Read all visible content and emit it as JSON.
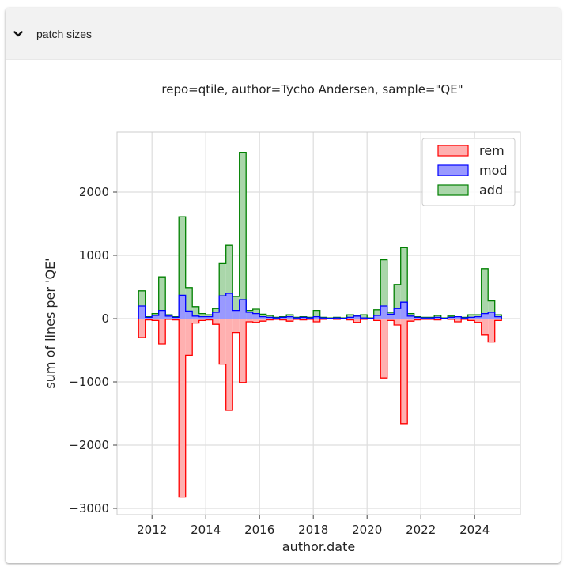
{
  "panel": {
    "title": "patch sizes",
    "toggle_icon": "chevron-down-icon"
  },
  "chart_data": {
    "type": "histogram-step",
    "title": "repo=qtile, author=Tycho Andersen, sample=\"QE\"",
    "xlabel": "author.date",
    "ylabel": "sum of lines per 'QE'",
    "ylim": [
      -3100,
      2950
    ],
    "xlim": [
      2010.7,
      2025.7
    ],
    "yticks": [
      -3000,
      -2000,
      -1000,
      0,
      1000,
      2000
    ],
    "ytick_labels": [
      "−3000",
      "−2000",
      "−1000",
      "0",
      "1000",
      "2000"
    ],
    "xticks": [
      2012,
      2014,
      2016,
      2018,
      2020,
      2022,
      2024
    ],
    "xtick_labels": [
      "2012",
      "2014",
      "2016",
      "2018",
      "2020",
      "2022",
      "2024"
    ],
    "grid": true,
    "legend_position": "top-right",
    "bin_width_years": 0.25,
    "x": [
      2011.5,
      2011.75,
      2012,
      2012.25,
      2012.5,
      2012.75,
      2013,
      2013.25,
      2013.5,
      2013.75,
      2014,
      2014.25,
      2014.5,
      2014.75,
      2015,
      2015.25,
      2015.5,
      2015.75,
      2016,
      2016.25,
      2016.5,
      2016.75,
      2017,
      2017.25,
      2017.5,
      2017.75,
      2018,
      2018.25,
      2018.5,
      2018.75,
      2019,
      2019.25,
      2019.5,
      2019.75,
      2020,
      2020.25,
      2020.5,
      2020.75,
      2021,
      2021.25,
      2021.5,
      2021.75,
      2022,
      2022.25,
      2022.5,
      2022.75,
      2023,
      2023.25,
      2023.5,
      2023.75,
      2024,
      2024.25,
      2024.5,
      2024.75
    ],
    "series": [
      {
        "name": "rem",
        "color": "#ff0000",
        "fill": "#ffb0b0",
        "values": [
          -300,
          -20,
          -30,
          -400,
          -10,
          -20,
          -2820,
          -580,
          -70,
          -30,
          -20,
          -90,
          -720,
          -1450,
          -220,
          -1010,
          -50,
          -60,
          -40,
          -20,
          -10,
          -20,
          -40,
          -10,
          -20,
          -10,
          -50,
          -10,
          -5,
          -10,
          -5,
          -20,
          -60,
          -10,
          -5,
          -30,
          -940,
          -30,
          -100,
          -1660,
          -40,
          -20,
          -10,
          -10,
          -20,
          -5,
          -10,
          -50,
          -10,
          -30,
          -60,
          -260,
          -370,
          -30
        ]
      },
      {
        "name": "mod",
        "color": "#0000ff",
        "fill": "#9999ff",
        "values": [
          200,
          20,
          50,
          130,
          40,
          20,
          370,
          120,
          40,
          30,
          30,
          100,
          360,
          400,
          130,
          300,
          100,
          80,
          30,
          20,
          10,
          20,
          30,
          10,
          20,
          10,
          30,
          10,
          5,
          10,
          5,
          20,
          40,
          10,
          5,
          50,
          200,
          70,
          160,
          260,
          40,
          20,
          10,
          10,
          20,
          5,
          20,
          30,
          10,
          20,
          30,
          80,
          100,
          30
        ]
      },
      {
        "name": "add",
        "color": "#008000",
        "fill": "#aad6aa",
        "values": [
          440,
          30,
          80,
          660,
          60,
          30,
          1610,
          490,
          190,
          80,
          60,
          160,
          870,
          1160,
          350,
          2630,
          130,
          150,
          70,
          50,
          20,
          30,
          60,
          20,
          30,
          20,
          130,
          20,
          10,
          20,
          10,
          60,
          40,
          60,
          10,
          140,
          930,
          100,
          540,
          1120,
          80,
          30,
          20,
          20,
          50,
          10,
          40,
          30,
          20,
          60,
          60,
          790,
          280,
          60
        ]
      }
    ]
  }
}
